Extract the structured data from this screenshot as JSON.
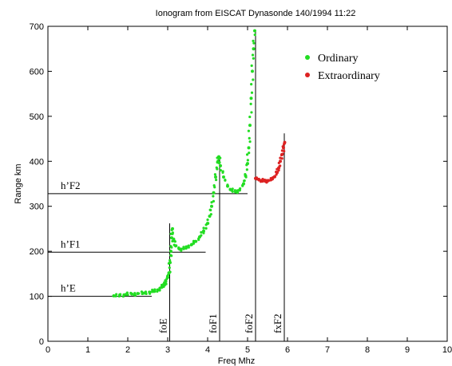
{
  "chart_data": {
    "type": "scatter",
    "title": "Ionogram from EISCAT Dynasonde 140/1994 11:22",
    "xlabel": "Freq Mhz",
    "ylabel": "Range km",
    "xlim": [
      0,
      10
    ],
    "ylim": [
      0,
      700
    ],
    "x_ticks": [
      "0",
      "1",
      "2",
      "3",
      "4",
      "5",
      "6",
      "7",
      "8",
      "9",
      "10"
    ],
    "y_ticks": [
      "0",
      "100",
      "200",
      "300",
      "400",
      "500",
      "600",
      "700"
    ],
    "grid": false,
    "legend_position": "top-right",
    "series": [
      {
        "name": "Ordinary",
        "color": "#22dd22",
        "points": [
          [
            1.65,
            101
          ],
          [
            1.8,
            103
          ],
          [
            1.95,
            104
          ],
          [
            2.1,
            105
          ],
          [
            2.25,
            106
          ],
          [
            2.4,
            107
          ],
          [
            2.55,
            109
          ],
          [
            2.65,
            111
          ],
          [
            2.75,
            114
          ],
          [
            2.85,
            120
          ],
          [
            2.9,
            125
          ],
          [
            2.95,
            133
          ],
          [
            3.0,
            142
          ],
          [
            3.03,
            152
          ],
          [
            3.06,
            175
          ],
          [
            3.08,
            200
          ],
          [
            3.1,
            230
          ],
          [
            3.12,
            250
          ],
          [
            3.15,
            225
          ],
          [
            3.2,
            212
          ],
          [
            3.3,
            205
          ],
          [
            3.4,
            206
          ],
          [
            3.5,
            210
          ],
          [
            3.6,
            215
          ],
          [
            3.7,
            222
          ],
          [
            3.8,
            232
          ],
          [
            3.9,
            245
          ],
          [
            4.0,
            262
          ],
          [
            4.05,
            278
          ],
          [
            4.1,
            300
          ],
          [
            4.15,
            330
          ],
          [
            4.2,
            365
          ],
          [
            4.25,
            398
          ],
          [
            4.28,
            410
          ],
          [
            4.32,
            390
          ],
          [
            4.4,
            365
          ],
          [
            4.5,
            345
          ],
          [
            4.6,
            336
          ],
          [
            4.7,
            332
          ],
          [
            4.8,
            336
          ],
          [
            4.9,
            350
          ],
          [
            4.95,
            368
          ],
          [
            5.0,
            395
          ],
          [
            5.03,
            430
          ],
          [
            5.06,
            480
          ],
          [
            5.09,
            540
          ],
          [
            5.12,
            600
          ],
          [
            5.15,
            650
          ],
          [
            5.18,
            690
          ]
        ]
      },
      {
        "name": "Extraordinary",
        "color": "#dd2222",
        "points": [
          [
            5.2,
            362
          ],
          [
            5.28,
            360
          ],
          [
            5.36,
            357
          ],
          [
            5.44,
            356
          ],
          [
            5.52,
            357
          ],
          [
            5.6,
            360
          ],
          [
            5.68,
            366
          ],
          [
            5.74,
            375
          ],
          [
            5.78,
            385
          ],
          [
            5.82,
            400
          ],
          [
            5.86,
            415
          ],
          [
            5.9,
            430
          ],
          [
            5.93,
            442
          ]
        ]
      }
    ],
    "height_lines": [
      {
        "label": "h’E",
        "range": 100,
        "x_end": 2.6
      },
      {
        "label": "h’F1",
        "range": 198,
        "x_end": 3.95
      },
      {
        "label": "h’F2",
        "range": 328,
        "x_end": 5.0
      }
    ],
    "critical_frequencies": [
      {
        "label": "foE",
        "freq": 3.05,
        "top": 262
      },
      {
        "label": "foF1",
        "freq": 4.3,
        "top": 410
      },
      {
        "label": "foF2",
        "freq": 5.2,
        "top": 690
      },
      {
        "label": "fxF2",
        "freq": 5.92,
        "top": 462
      }
    ]
  }
}
